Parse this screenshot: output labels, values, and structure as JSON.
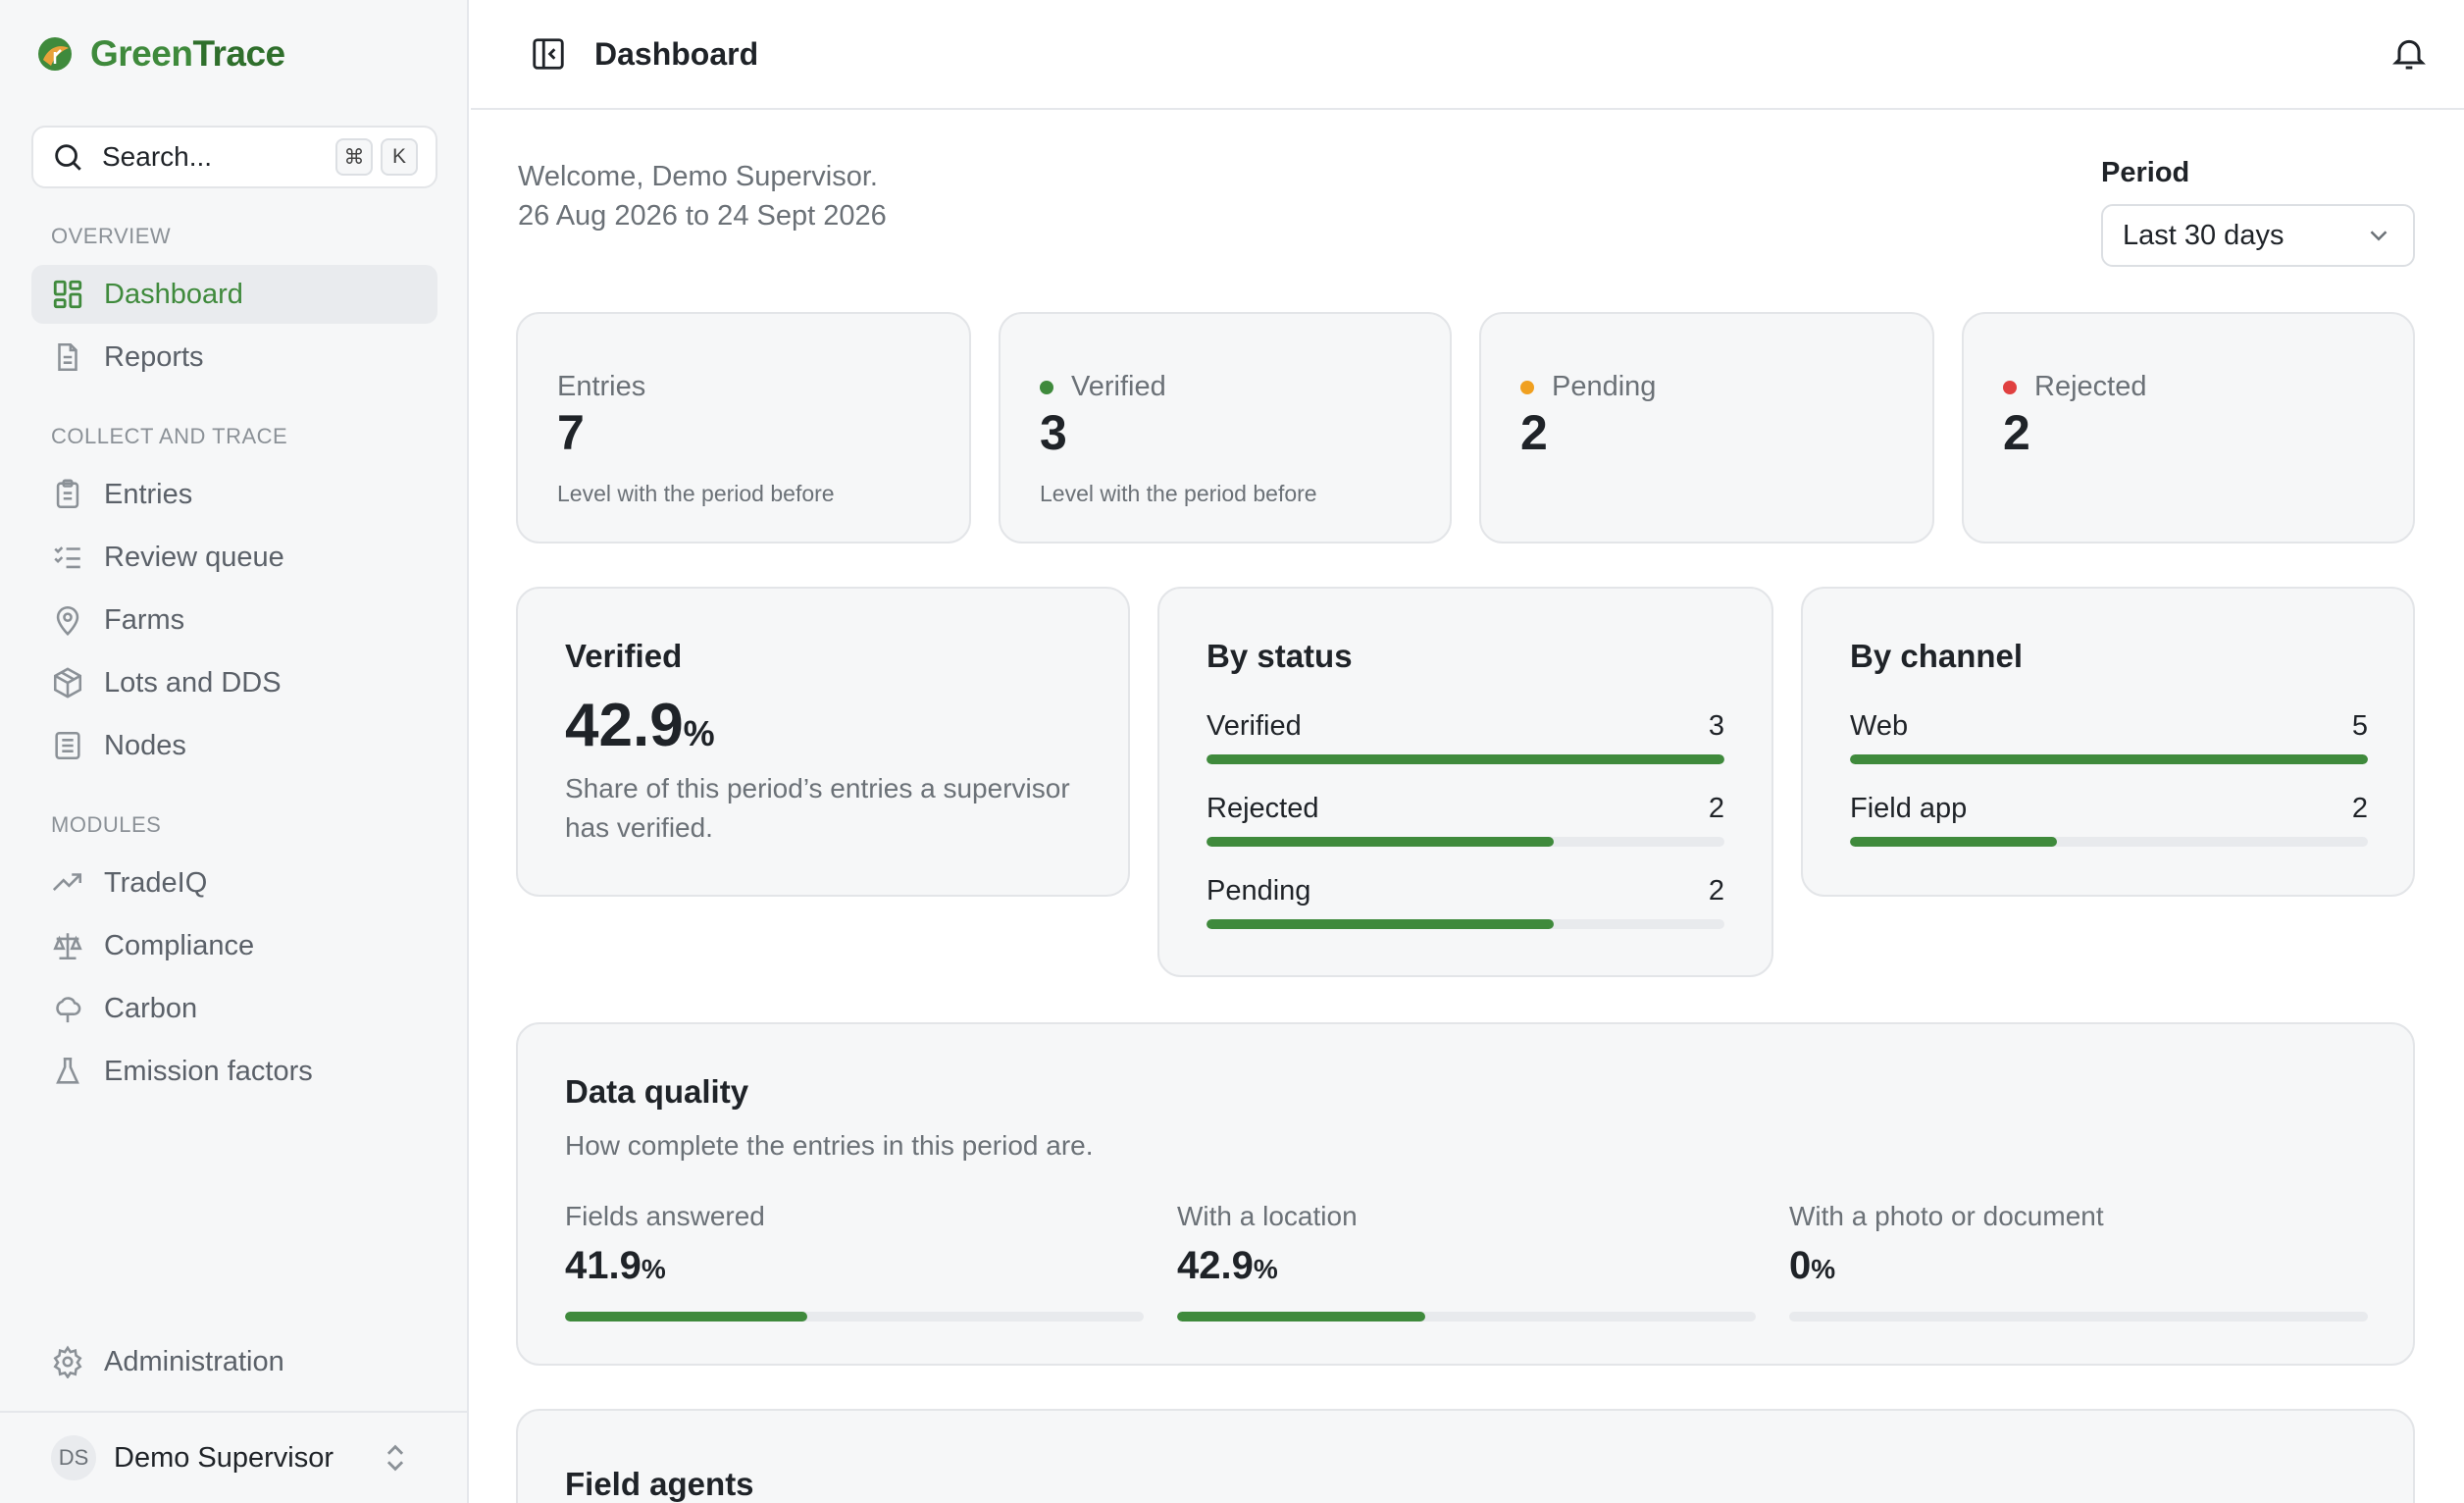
{
  "brand": {
    "name_a": "Green",
    "name_b": "Trace"
  },
  "search": {
    "placeholder": "Search...",
    "key1": "⌘",
    "key2": "K"
  },
  "sidebar": {
    "overview_label": "OVERVIEW",
    "collect_label": "COLLECT AND TRACE",
    "modules_label": "MODULES",
    "items": {
      "dashboard": "Dashboard",
      "reports": "Reports",
      "entries": "Entries",
      "review_queue": "Review queue",
      "farms": "Farms",
      "lots": "Lots and DDS",
      "nodes": "Nodes",
      "tradeiq": "TradeIQ",
      "compliance": "Compliance",
      "carbon": "Carbon",
      "emission": "Emission factors",
      "administration": "Administration"
    },
    "user": {
      "initials": "DS",
      "name": "Demo Supervisor"
    }
  },
  "header": {
    "title": "Dashboard"
  },
  "welcome": {
    "line1": "Welcome, Demo Supervisor.",
    "line2": "26 Aug 2026 to 24 Sept 2026"
  },
  "period": {
    "label": "Period",
    "value": "Last 30 days"
  },
  "stats": {
    "entries": {
      "label": "Entries",
      "value": "7",
      "sub": "Level with the period before"
    },
    "verified": {
      "label": "Verified",
      "value": "3",
      "sub": "Level with the period before",
      "color": "#3f8a3c"
    },
    "pending": {
      "label": "Pending",
      "value": "2",
      "color": "#f0a020"
    },
    "rejected": {
      "label": "Rejected",
      "value": "2",
      "color": "#e04040"
    }
  },
  "verified_card": {
    "title": "Verified",
    "value": "42.9",
    "unit": "%",
    "desc1": "Share of this period’s entries a supervisor",
    "desc2": "has verified."
  },
  "by_status": {
    "title": "By status",
    "rows": [
      {
        "label": "Verified",
        "value": "3",
        "fill": 1.0
      },
      {
        "label": "Rejected",
        "value": "2",
        "fill": 0.67
      },
      {
        "label": "Pending",
        "value": "2",
        "fill": 0.67
      }
    ]
  },
  "by_channel": {
    "title": "By channel",
    "rows": [
      {
        "label": "Web",
        "value": "5",
        "fill": 1.0
      },
      {
        "label": "Field app",
        "value": "2",
        "fill": 0.4
      }
    ]
  },
  "data_quality": {
    "title": "Data quality",
    "desc": "How complete the entries in this period are.",
    "cols": [
      {
        "label": "Fields answered",
        "value": "41.9",
        "unit": "%",
        "fill": 0.419
      },
      {
        "label": "With a location",
        "value": "42.9",
        "unit": "%",
        "fill": 0.429
      },
      {
        "label": "With a photo or document",
        "value": "0",
        "unit": "%",
        "fill": 0.0
      }
    ]
  },
  "field_agents": {
    "title": "Field agents"
  },
  "colors": {
    "accent": "#3f8a3c"
  }
}
